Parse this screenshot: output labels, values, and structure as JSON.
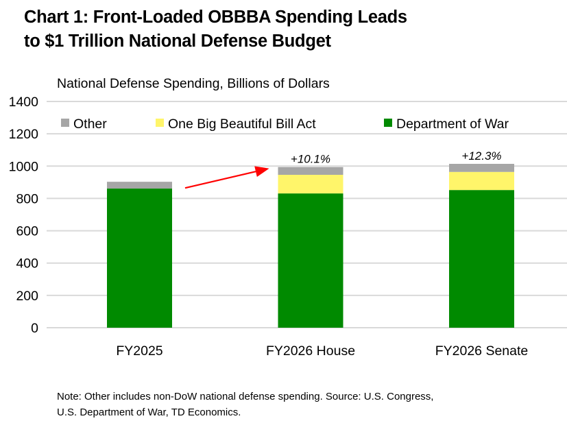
{
  "header": {
    "title_lines": [
      "Chart 1: Front-Loaded OBBBA Spending Leads",
      "to $1 Trillion National Defense Budget"
    ]
  },
  "footer": {
    "note_lines": [
      "Note: Other includes non-DoW national defense spending. Source: U.S. Congress,",
      "U.S. Department of War, TD Economics."
    ]
  },
  "chart_data": {
    "type": "bar",
    "stacked": true,
    "title": "Chart 1: Front-Loaded OBBBA Spending Leads to $1 Trillion National Defense Budget",
    "subtitle": "National Defense Spending, Billions of Dollars",
    "xlabel": "",
    "ylabel": "",
    "categories": [
      "FY2025",
      "FY2026 House",
      "FY2026 Senate"
    ],
    "series": [
      {
        "name": "Department of War",
        "color": "#008A00",
        "values": [
          861,
          831,
          852
        ]
      },
      {
        "name": "One Big Beautiful Bill Act",
        "color": "#FFF56A",
        "values": [
          0,
          115,
          112
        ]
      },
      {
        "name": "Other",
        "color": "#A6A6A6",
        "values": [
          42,
          48,
          50
        ]
      }
    ],
    "legend": {
      "order": [
        "Other",
        "One Big Beautiful Bill Act",
        "Department of War"
      ],
      "placement": "top"
    },
    "ylim": [
      0,
      1400
    ],
    "yticks": [
      0,
      200,
      400,
      600,
      800,
      1000,
      1200,
      1400
    ],
    "grid": true,
    "annotations": [
      {
        "category": "FY2026 House",
        "text": "+10.1%"
      },
      {
        "category": "FY2026 Senate",
        "text": "+12.3%"
      }
    ],
    "arrow": {
      "from": "FY2025",
      "to": "FY2026 House",
      "color": "#FF0000"
    },
    "colors": {
      "gridline": "#D9D9D9",
      "arrow": "#FF0000"
    }
  }
}
